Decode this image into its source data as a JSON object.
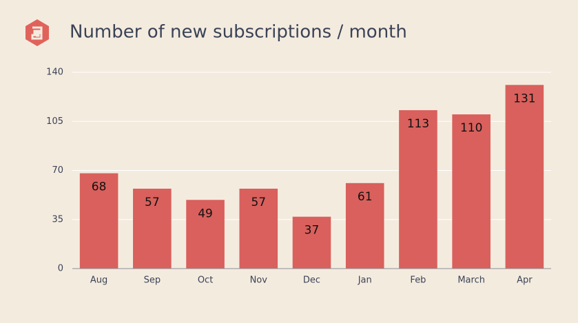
{
  "chart_data": {
    "type": "bar",
    "title": "Number of new subscriptions / month",
    "categories": [
      "Aug",
      "Sep",
      "Oct",
      "Nov",
      "Dec",
      "Jan",
      "Feb",
      "March",
      "Apr"
    ],
    "values": [
      68,
      57,
      49,
      57,
      37,
      61,
      113,
      110,
      131
    ],
    "color": "#d9605c",
    "ylim": [
      0,
      140
    ],
    "yticks": [
      0,
      35,
      70,
      105,
      140
    ],
    "grid": true
  }
}
